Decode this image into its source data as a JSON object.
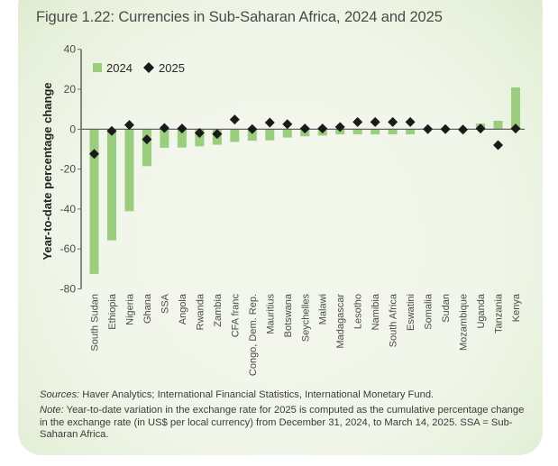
{
  "figure": {
    "title": "Figure 1.22: Currencies in Sub-Saharan Africa, 2024 and 2025",
    "sources_label": "Sources:",
    "sources_text": " Haver Analytics; International Financial Statistics, International Monetary Fund.",
    "note_label": "Note:",
    "note_text": " Year-to-date variation in the exchange rate for 2025 is computed as the cumulative percentage change in the exchange rate (in US$ per local currency) from December 31, 2024, to March 14, 2025. SSA = Sub-Saharan Africa."
  },
  "colors": {
    "bar_2024": "#9acd7e",
    "marker_2025": "#1a1a1a",
    "axis": "#6b6b6b"
  },
  "chart_data": {
    "type": "bar",
    "title": "Figure 1.22: Currencies in Sub-Saharan Africa, 2024 and 2025",
    "xlabel": "",
    "ylabel": "Year-to-date percentage change",
    "ylim": [
      -80,
      40
    ],
    "yticks": [
      40,
      20,
      0,
      -20,
      -40,
      -60,
      -80
    ],
    "grid": false,
    "legend_position": "top-left",
    "categories": [
      "South Sudan",
      "Ethiopia",
      "Nigeria",
      "Ghana",
      "SSA",
      "Angola",
      "Rwanda",
      "Zambia",
      "CFA franc",
      "Congo, Dem. Rep.",
      "Mauritius",
      "Botswana",
      "Seychelles",
      "Malawi",
      "Madagascar",
      "Lesotho",
      "Namibia",
      "South Africa",
      "Eswatini",
      "Somalia",
      "Sudan",
      "Mozambique",
      "Uganda",
      "Tanzania",
      "Kenya"
    ],
    "series": [
      {
        "name": "2024",
        "kind": "bar",
        "values": [
          -72.5,
          -55.7,
          -41.1,
          -18.5,
          -9.3,
          -9.2,
          -8.6,
          -7.8,
          -6.4,
          -5.8,
          -5.6,
          -4.2,
          -3.6,
          -3.2,
          -2.6,
          -2.6,
          -2.6,
          -2.6,
          -2.6,
          0,
          0,
          0,
          2.8,
          4.2,
          20.9
        ]
      },
      {
        "name": "2025",
        "kind": "diamond-marker",
        "values": [
          -12.4,
          -0.9,
          2.1,
          -5.1,
          0.6,
          0.3,
          -1.9,
          -2.4,
          4.8,
          0.0,
          3.3,
          2.5,
          0.3,
          0.3,
          1.1,
          3.6,
          3.6,
          3.6,
          3.6,
          0.0,
          0.0,
          -0.2,
          0.3,
          -8.0,
          0.3
        ]
      }
    ]
  }
}
